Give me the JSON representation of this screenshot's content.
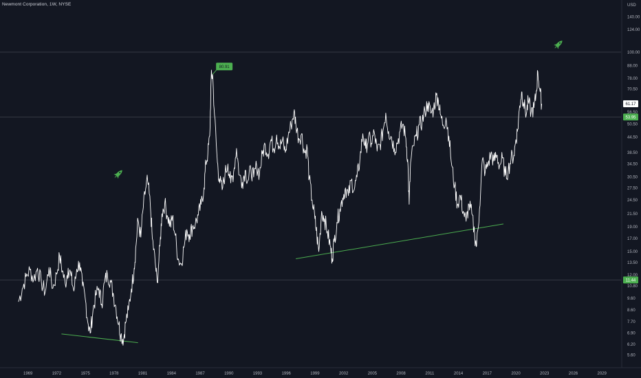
{
  "header": {
    "title": "Newmont Corporation, 1W, NYSE"
  },
  "chart_data": {
    "type": "line",
    "title": "Newmont Corporation, 1W, NYSE",
    "price_axis_unit": "USD",
    "y_scale": "log",
    "ylim": [
      5.0,
      160.0
    ],
    "xlim": [
      1967.8,
      2031.0
    ],
    "y_ticks": [
      {
        "value": 140.0,
        "label": "140.00"
      },
      {
        "value": 124.0,
        "label": "124.00"
      },
      {
        "value": 100.0,
        "label": "100.00"
      },
      {
        "value": 88.0,
        "label": "88.00"
      },
      {
        "value": 78.0,
        "label": "78.00"
      },
      {
        "value": 70.5,
        "label": "70.50"
      },
      {
        "value": 56.5,
        "label": "56.50"
      },
      {
        "value": 50.5,
        "label": "50.50"
      },
      {
        "value": 44.5,
        "label": "44.50"
      },
      {
        "value": 38.5,
        "label": "38.50"
      },
      {
        "value": 34.5,
        "label": "34.50"
      },
      {
        "value": 30.5,
        "label": "30.50"
      },
      {
        "value": 27.5,
        "label": "27.50"
      },
      {
        "value": 24.5,
        "label": "24.50"
      },
      {
        "value": 21.5,
        "label": "21.50"
      },
      {
        "value": 19.0,
        "label": "19.00"
      },
      {
        "value": 17.0,
        "label": "17.00"
      },
      {
        "value": 15.0,
        "label": "15.00"
      },
      {
        "value": 13.5,
        "label": "13.50"
      },
      {
        "value": 12.0,
        "label": "12.00"
      },
      {
        "value": 10.8,
        "label": "10.80"
      },
      {
        "value": 9.6,
        "label": "9.60"
      },
      {
        "value": 8.6,
        "label": "8.60"
      },
      {
        "value": 7.7,
        "label": "7.70"
      },
      {
        "value": 6.9,
        "label": "6.90"
      },
      {
        "value": 6.2,
        "label": "6.20"
      },
      {
        "value": 5.6,
        "label": "5.60"
      }
    ],
    "x_ticks": [
      {
        "value": 1969,
        "label": "1969"
      },
      {
        "value": 1972,
        "label": "1972"
      },
      {
        "value": 1975,
        "label": "1975"
      },
      {
        "value": 1978,
        "label": "1978"
      },
      {
        "value": 1981,
        "label": "1981"
      },
      {
        "value": 1984,
        "label": "1984"
      },
      {
        "value": 1987,
        "label": "1987"
      },
      {
        "value": 1990,
        "label": "1990"
      },
      {
        "value": 1993,
        "label": "1993"
      },
      {
        "value": 1996,
        "label": "1996"
      },
      {
        "value": 1999,
        "label": "1999"
      },
      {
        "value": 2002,
        "label": "2002"
      },
      {
        "value": 2005,
        "label": "2005"
      },
      {
        "value": 2008,
        "label": "2008"
      },
      {
        "value": 2011,
        "label": "2011"
      },
      {
        "value": 2014,
        "label": "2014"
      },
      {
        "value": 2017,
        "label": "2017"
      },
      {
        "value": 2020,
        "label": "2020"
      },
      {
        "value": 2023,
        "label": "2023"
      },
      {
        "value": 2026,
        "label": "2026"
      },
      {
        "value": 2029,
        "label": "2029"
      }
    ],
    "series": [
      {
        "color": "#ffffff",
        "points": [
          [
            1968.0,
            9.3
          ],
          [
            1968.4,
            10.5
          ],
          [
            1968.8,
            11.8
          ],
          [
            1969.2,
            12.6
          ],
          [
            1969.6,
            11.5
          ],
          [
            1970.0,
            12.8
          ],
          [
            1970.4,
            11.2
          ],
          [
            1970.8,
            10.2
          ],
          [
            1971.2,
            12.9
          ],
          [
            1971.6,
            10.6
          ],
          [
            1972.0,
            12.1
          ],
          [
            1972.3,
            14.4
          ],
          [
            1972.6,
            12.5
          ],
          [
            1972.9,
            11.0
          ],
          [
            1973.2,
            12.8
          ],
          [
            1973.5,
            11.9
          ],
          [
            1973.8,
            10.3
          ],
          [
            1974.1,
            12.7
          ],
          [
            1974.4,
            13.5
          ],
          [
            1974.7,
            10.8
          ],
          [
            1975.0,
            9.5
          ],
          [
            1975.3,
            7.5
          ],
          [
            1975.5,
            6.9
          ],
          [
            1975.8,
            8.6
          ],
          [
            1976.1,
            9.9
          ],
          [
            1976.4,
            10.6
          ],
          [
            1976.7,
            9.1
          ],
          [
            1977.0,
            11.2
          ],
          [
            1977.3,
            12.1
          ],
          [
            1977.6,
            11.4
          ],
          [
            1977.9,
            10.1
          ],
          [
            1978.2,
            8.8
          ],
          [
            1978.5,
            7.5
          ],
          [
            1978.7,
            6.8
          ],
          [
            1979.0,
            6.5
          ],
          [
            1979.2,
            7.6
          ],
          [
            1979.5,
            8.6
          ],
          [
            1979.8,
            10.5
          ],
          [
            1980.1,
            12.8
          ],
          [
            1980.3,
            16.0
          ],
          [
            1980.5,
            20.3
          ],
          [
            1980.8,
            17.2
          ],
          [
            1981.0,
            22.0
          ],
          [
            1981.3,
            27.3
          ],
          [
            1981.5,
            29.6
          ],
          [
            1981.8,
            23.0
          ],
          [
            1982.0,
            17.0
          ],
          [
            1982.3,
            13.5
          ],
          [
            1982.5,
            11.2
          ],
          [
            1982.8,
            15.8
          ],
          [
            1983.0,
            21.5
          ],
          [
            1983.3,
            23.8
          ],
          [
            1983.6,
            21.0
          ],
          [
            1983.9,
            19.2
          ],
          [
            1984.1,
            20.8
          ],
          [
            1984.4,
            17.5
          ],
          [
            1984.7,
            14.0
          ],
          [
            1985.0,
            13.3
          ],
          [
            1985.3,
            15.6
          ],
          [
            1985.6,
            18.5
          ],
          [
            1985.9,
            17.6
          ],
          [
            1986.2,
            19.0
          ],
          [
            1986.5,
            19.6
          ],
          [
            1986.8,
            21.2
          ],
          [
            1987.1,
            23.5
          ],
          [
            1987.4,
            27.5
          ],
          [
            1987.6,
            35.0
          ],
          [
            1987.8,
            38.0
          ],
          [
            1988.0,
            45.0
          ],
          [
            1988.15,
            78.0
          ],
          [
            1988.3,
            80.91
          ],
          [
            1988.5,
            55.0
          ],
          [
            1988.8,
            35.0
          ],
          [
            1989.0,
            30.0
          ],
          [
            1989.3,
            27.0
          ],
          [
            1989.6,
            31.5
          ],
          [
            1989.9,
            34.5
          ],
          [
            1990.2,
            28.8
          ],
          [
            1990.5,
            32.0
          ],
          [
            1990.8,
            40.0
          ],
          [
            1991.1,
            31.0
          ],
          [
            1991.4,
            29.0
          ],
          [
            1991.7,
            32.5
          ],
          [
            1992.0,
            29.5
          ],
          [
            1992.3,
            32.8
          ],
          [
            1992.6,
            30.5
          ],
          [
            1992.9,
            34.0
          ],
          [
            1993.2,
            31.5
          ],
          [
            1993.5,
            38.0
          ],
          [
            1993.8,
            41.5
          ],
          [
            1994.1,
            38.0
          ],
          [
            1994.4,
            43.5
          ],
          [
            1994.7,
            40.0
          ],
          [
            1995.0,
            45.5
          ],
          [
            1995.3,
            40.5
          ],
          [
            1995.6,
            43.0
          ],
          [
            1995.9,
            38.5
          ],
          [
            1996.2,
            45.0
          ],
          [
            1996.5,
            50.0
          ],
          [
            1996.8,
            56.5
          ],
          [
            1997.0,
            51.0
          ],
          [
            1997.3,
            44.0
          ],
          [
            1997.6,
            46.0
          ],
          [
            1997.9,
            38.5
          ],
          [
            1998.2,
            40.0
          ],
          [
            1998.4,
            30.0
          ],
          [
            1998.7,
            24.5
          ],
          [
            1999.0,
            20.5
          ],
          [
            1999.2,
            17.5
          ],
          [
            1999.4,
            15.0
          ],
          [
            1999.7,
            22.0
          ],
          [
            2000.0,
            20.5
          ],
          [
            2000.3,
            18.2
          ],
          [
            2000.6,
            15.8
          ],
          [
            2000.8,
            14.0
          ],
          [
            2001.0,
            16.5
          ],
          [
            2001.3,
            19.8
          ],
          [
            2001.6,
            22.5
          ],
          [
            2001.9,
            25.0
          ],
          [
            2002.2,
            27.5
          ],
          [
            2002.5,
            25.5
          ],
          [
            2002.8,
            29.5
          ],
          [
            2003.1,
            27.0
          ],
          [
            2003.4,
            30.5
          ],
          [
            2003.7,
            36.0
          ],
          [
            2004.0,
            46.0
          ],
          [
            2004.3,
            40.0
          ],
          [
            2004.6,
            44.5
          ],
          [
            2004.9,
            42.0
          ],
          [
            2005.2,
            46.5
          ],
          [
            2005.5,
            39.0
          ],
          [
            2005.8,
            41.5
          ],
          [
            2006.1,
            47.0
          ],
          [
            2006.4,
            56.0
          ],
          [
            2006.7,
            47.0
          ],
          [
            2007.0,
            44.5
          ],
          [
            2007.3,
            40.0
          ],
          [
            2007.6,
            42.0
          ],
          [
            2007.9,
            47.0
          ],
          [
            2008.2,
            50.5
          ],
          [
            2008.5,
            44.0
          ],
          [
            2008.7,
            36.0
          ],
          [
            2008.85,
            23.5
          ],
          [
            2009.0,
            35.0
          ],
          [
            2009.3,
            41.0
          ],
          [
            2009.6,
            45.0
          ],
          [
            2009.9,
            50.0
          ],
          [
            2010.2,
            51.5
          ],
          [
            2010.5,
            57.0
          ],
          [
            2010.8,
            61.5
          ],
          [
            2011.1,
            56.0
          ],
          [
            2011.4,
            58.0
          ],
          [
            2011.7,
            66.5
          ],
          [
            2011.9,
            63.0
          ],
          [
            2012.1,
            55.5
          ],
          [
            2012.4,
            50.0
          ],
          [
            2012.7,
            53.5
          ],
          [
            2013.0,
            45.0
          ],
          [
            2013.3,
            34.0
          ],
          [
            2013.6,
            28.0
          ],
          [
            2013.9,
            23.5
          ],
          [
            2014.2,
            25.5
          ],
          [
            2014.5,
            22.0
          ],
          [
            2014.8,
            20.0
          ],
          [
            2015.1,
            23.5
          ],
          [
            2015.4,
            21.5
          ],
          [
            2015.7,
            17.5
          ],
          [
            2015.9,
            15.8
          ],
          [
            2016.2,
            22.5
          ],
          [
            2016.5,
            36.0
          ],
          [
            2016.8,
            32.0
          ],
          [
            2017.1,
            34.5
          ],
          [
            2017.4,
            38.0
          ],
          [
            2017.7,
            35.5
          ],
          [
            2018.0,
            37.5
          ],
          [
            2018.3,
            34.0
          ],
          [
            2018.6,
            36.5
          ],
          [
            2018.9,
            31.0
          ],
          [
            2019.2,
            32.5
          ],
          [
            2019.5,
            36.5
          ],
          [
            2019.8,
            37.5
          ],
          [
            2020.0,
            43.5
          ],
          [
            2020.2,
            48.0
          ],
          [
            2020.4,
            60.0
          ],
          [
            2020.6,
            68.5
          ],
          [
            2020.8,
            62.0
          ],
          [
            2021.1,
            55.5
          ],
          [
            2021.3,
            63.0
          ],
          [
            2021.6,
            56.5
          ],
          [
            2021.9,
            59.0
          ],
          [
            2022.1,
            66.0
          ],
          [
            2022.3,
            83.0
          ],
          [
            2022.5,
            70.5
          ],
          [
            2022.7,
            61.17
          ]
        ]
      }
    ],
    "trendlines": [
      {
        "color": "#4caf50",
        "points": [
          [
            1972.5,
            6.85
          ],
          [
            1980.5,
            6.3
          ]
        ]
      },
      {
        "color": "#4caf50",
        "points": [
          [
            1997.0,
            14.0
          ],
          [
            2018.7,
            19.5
          ]
        ]
      }
    ],
    "horizontal_levels": [
      {
        "value": 100.0,
        "color": "#363a45"
      },
      {
        "value": 53.95,
        "color": "#363a45"
      },
      {
        "value": 11.44,
        "color": "#363a45"
      }
    ],
    "annotations": [
      {
        "x": 1988.3,
        "y": 80.91,
        "label": "80.91",
        "color": "#4caf50",
        "icon": "rocket-icon"
      },
      {
        "x": 1978.5,
        "y": 31.5,
        "label": "",
        "color": "#4caf50",
        "icon": "rocket-icon"
      },
      {
        "x": 2024.5,
        "y": 108.0,
        "label": "",
        "color": "#4caf50",
        "icon": "rocket-icon"
      }
    ],
    "price_labels": [
      {
        "value": 61.17,
        "label": "61.17",
        "bg": "#ffffff",
        "fg": "#131722"
      },
      {
        "value": 53.95,
        "label": "53.95",
        "bg": "#4caf50",
        "fg": "#ffffff"
      },
      {
        "value": 11.44,
        "label": "11.44",
        "bg": "#4caf50",
        "fg": "#ffffff"
      }
    ],
    "colors": {
      "background": "#131722",
      "axis_text": "#b2b5be",
      "accent": "#4caf50"
    }
  }
}
